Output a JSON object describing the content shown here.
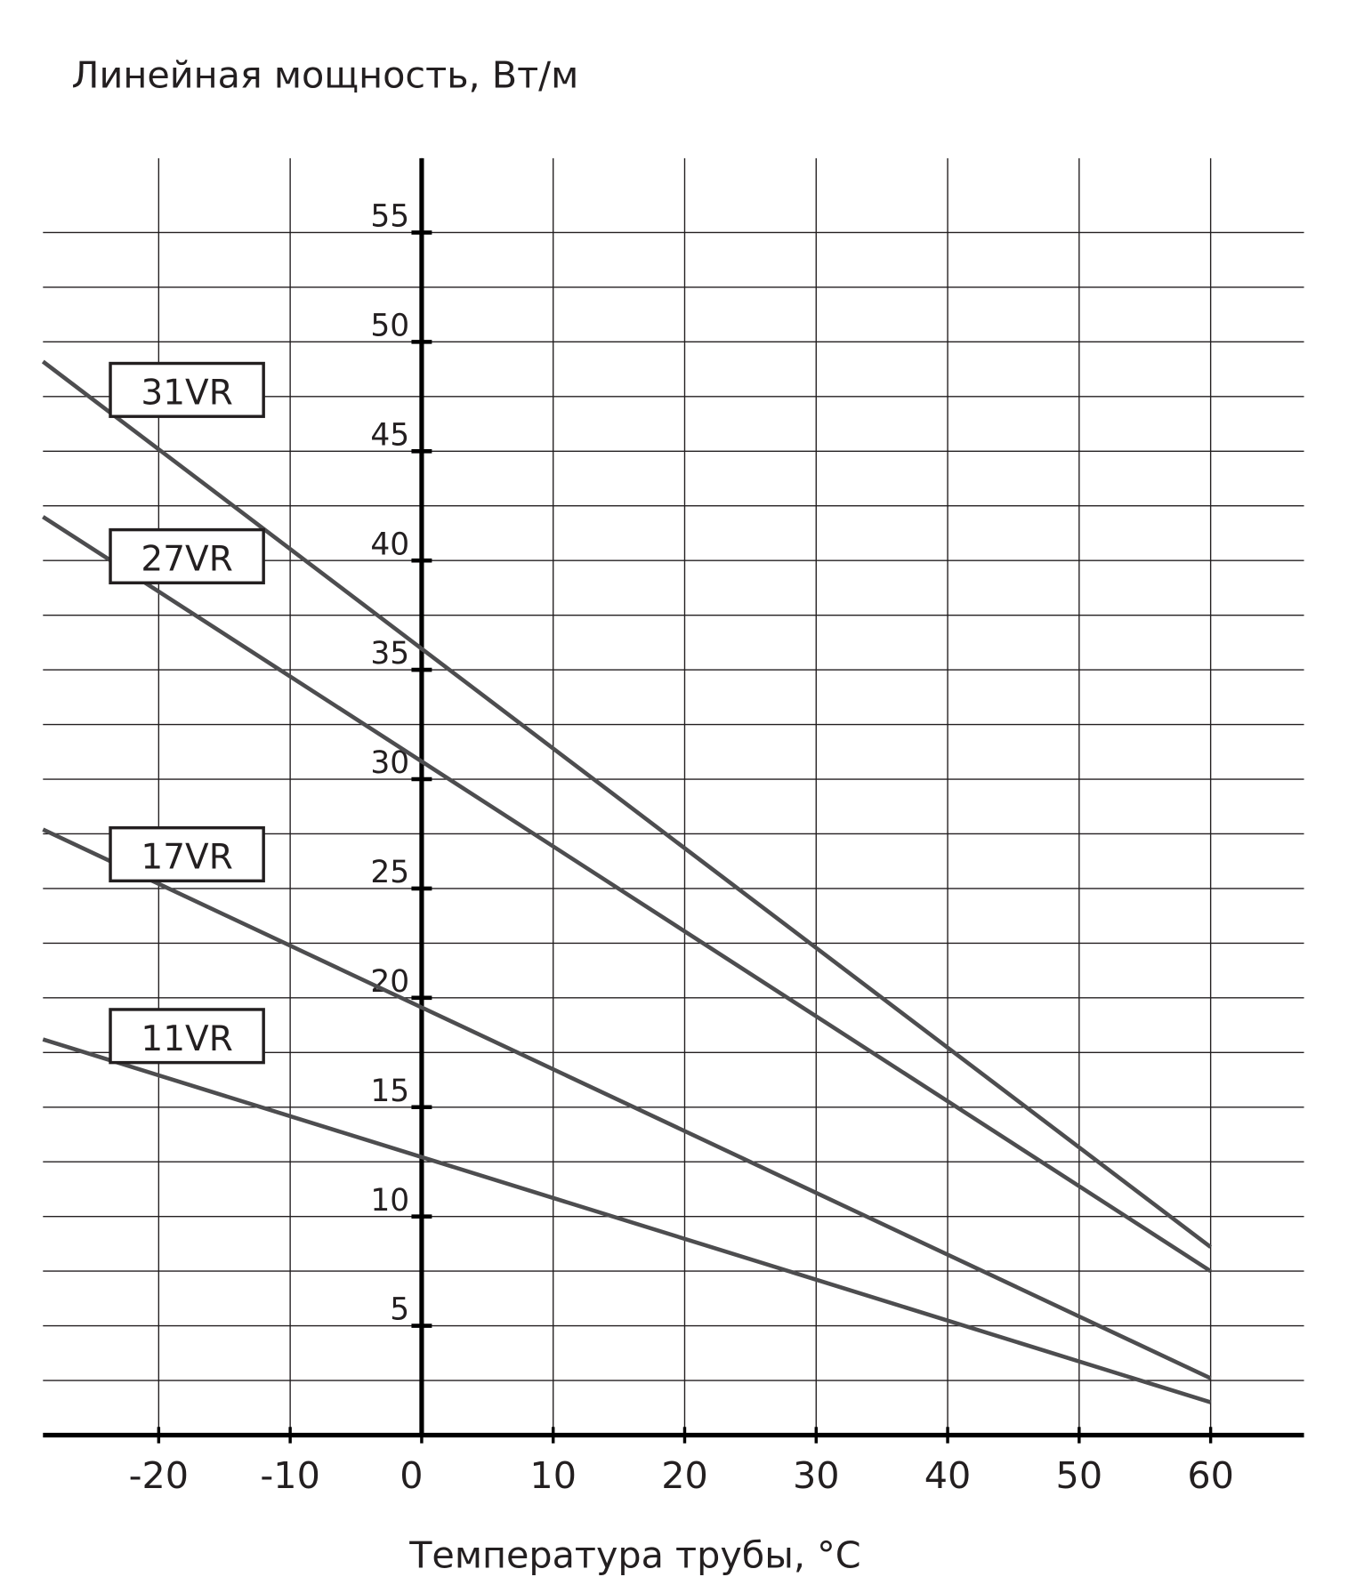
{
  "chart_data": {
    "type": "line",
    "ylabel": "Линейная мощность, Вт/м",
    "xlabel": "Температура трубы, °C",
    "x": [
      -28.8,
      60
    ],
    "series": [
      {
        "name": "31VR",
        "color": "#4d4d4f",
        "values": [
          49.1,
          8.6
        ]
      },
      {
        "name": "27VR",
        "color": "#4d4d4f",
        "values": [
          42.0,
          7.5
        ]
      },
      {
        "name": "17VR",
        "color": "#4d4d4f",
        "values": [
          27.7,
          2.6
        ]
      },
      {
        "name": "11VR",
        "color": "#4d4d4f",
        "values": [
          18.1,
          1.5
        ]
      }
    ],
    "xlim": [
      -28.8,
      67.1
    ],
    "ylim": [
      0,
      58.4
    ],
    "xticks": [
      -20,
      -10,
      0,
      10,
      20,
      30,
      40,
      50,
      60
    ],
    "yticks": [
      5,
      10,
      15,
      20,
      25,
      30,
      35,
      40,
      45,
      50,
      55
    ],
    "yminor": [
      2.5,
      7.5,
      12.5,
      17.5,
      22.5,
      27.5,
      32.5,
      37.5,
      42.5,
      47.5,
      52.5
    ],
    "grid": true
  }
}
